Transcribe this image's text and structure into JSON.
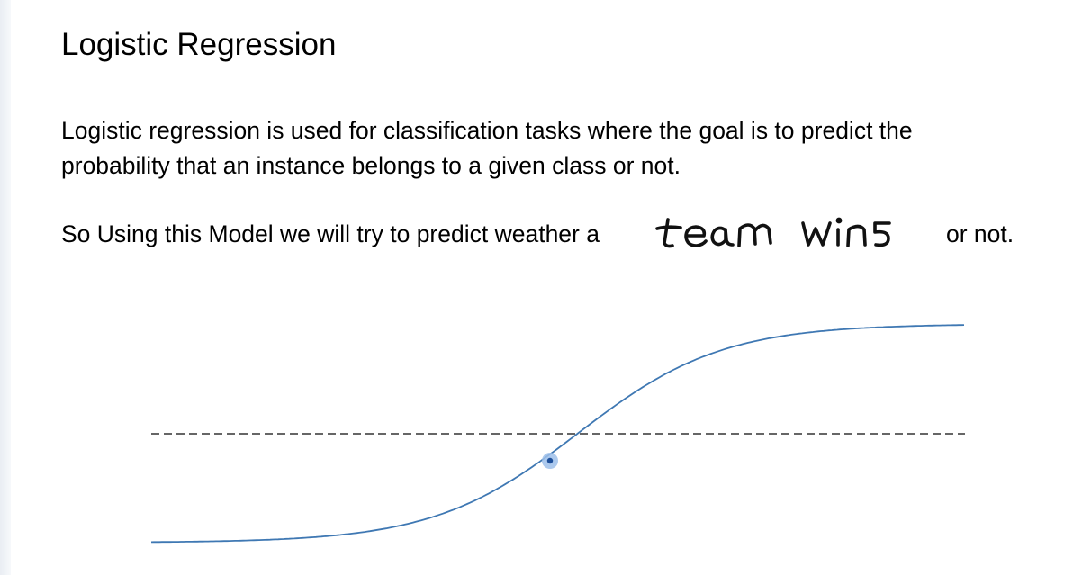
{
  "slide": {
    "title": "Logistic Regression",
    "paragraph_lines": [
      "Logistic regression is used for classification tasks where the goal is to predict the",
      "probability that an instance belongs to a given class or not."
    ],
    "sentence_prefix": "So Using this Model we will try to predict weather a",
    "handwritten_text": "team wins",
    "sentence_suffix": "or not."
  },
  "colors": {
    "curve": "#3f78b3",
    "point": "#1d4f9a",
    "point_halo": "#9dbfea",
    "threshold": "#333333"
  }
}
